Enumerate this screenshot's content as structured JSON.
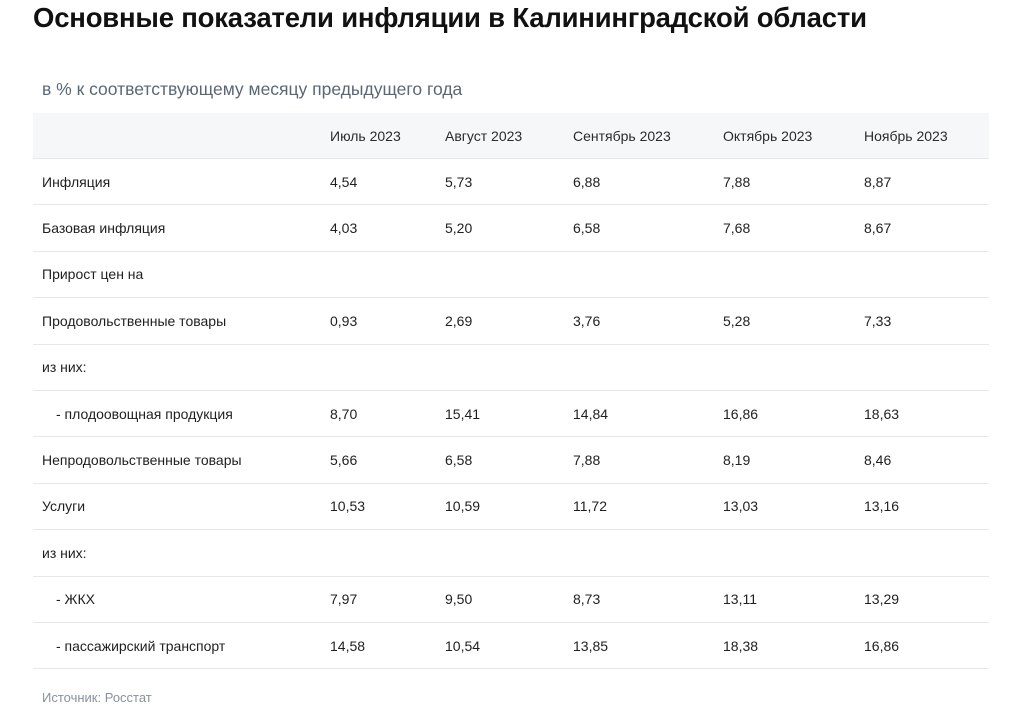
{
  "title": "Основные показатели инфляции в Калининградской области",
  "subtitle": "в % к соответствующему месяцу предыдущего года",
  "table": {
    "headers": [
      "",
      "Июль 2023",
      "Август 2023",
      "Сентябрь 2023",
      "Октябрь 2023",
      "Ноябрь 2023"
    ],
    "rows": [
      {
        "label": "Инфляция",
        "values": [
          "4,54",
          "5,73",
          "6,88",
          "7,88",
          "8,87"
        ]
      },
      {
        "label": "Базовая инфляция",
        "values": [
          "4,03",
          "5,20",
          "6,58",
          "7,68",
          "8,67"
        ]
      },
      {
        "label": "Прирост цен на",
        "values": [
          "",
          "",
          "",
          "",
          ""
        ]
      },
      {
        "label": "Продовольственные товары",
        "values": [
          "0,93",
          "2,69",
          "3,76",
          "5,28",
          "7,33"
        ]
      },
      {
        "label": "из них:",
        "values": [
          "",
          "",
          "",
          "",
          ""
        ]
      },
      {
        "label": "- плодоовощная продукция",
        "values": [
          "8,70",
          "15,41",
          "14,84",
          "16,86",
          "18,63"
        ]
      },
      {
        "label": "Непродовольственные товары",
        "values": [
          "5,66",
          "6,58",
          "7,88",
          "8,19",
          "8,46"
        ]
      },
      {
        "label": "Услуги",
        "values": [
          "10,53",
          "10,59",
          "11,72",
          "13,03",
          "13,16"
        ]
      },
      {
        "label": "из них:",
        "values": [
          "",
          "",
          "",
          "",
          ""
        ]
      },
      {
        "label": "- ЖКХ",
        "values": [
          "7,97",
          "9,50",
          "8,73",
          "13,11",
          "13,29"
        ]
      },
      {
        "label": "- пассажирский транспорт",
        "values": [
          "14,58",
          "10,54",
          "13,85",
          "18,38",
          "16,86"
        ]
      }
    ]
  },
  "source": "Источник: Росстат"
}
